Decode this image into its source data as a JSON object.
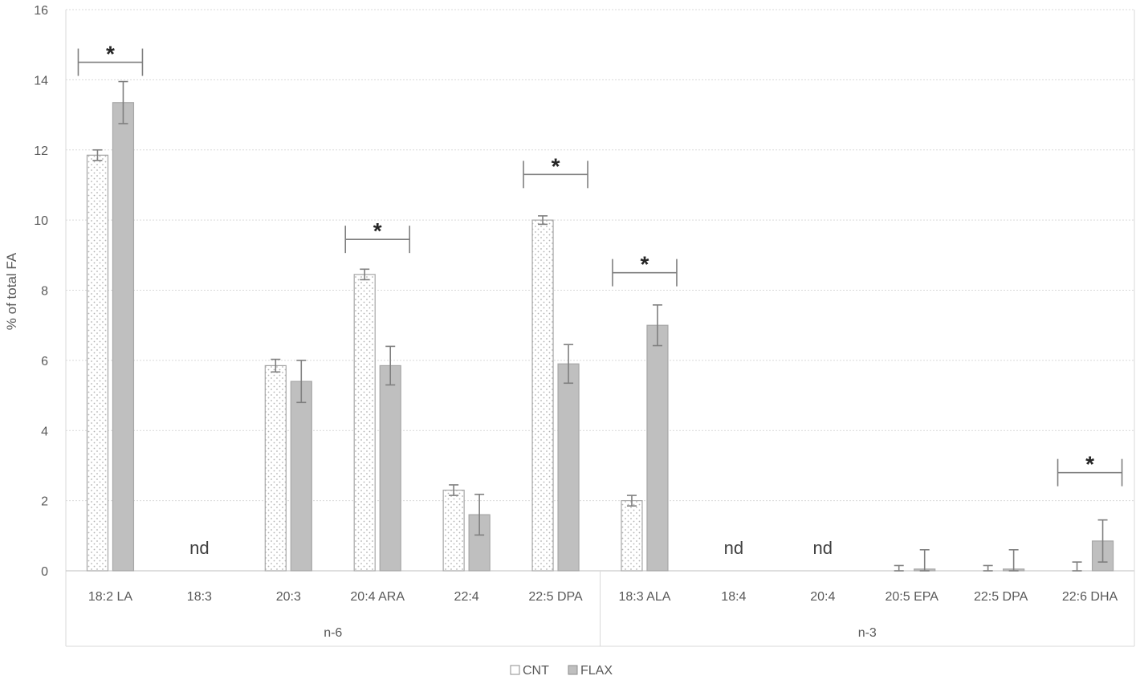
{
  "chart_data": {
    "type": "bar",
    "ylabel": "% of total FA",
    "ylim": [
      0,
      16
    ],
    "yticks": [
      0,
      2,
      4,
      6,
      8,
      10,
      12,
      14,
      16
    ],
    "grid": true,
    "legend_position": "bottom",
    "categories": [
      "18:2 LA",
      "18:3",
      "20:3",
      "20:4 ARA",
      "22:4",
      "22:5 DPA",
      "18:3 ALA",
      "18:4",
      "20:4",
      "20:5 EPA",
      "22:5 DPA",
      "22:6 DHA"
    ],
    "groups": [
      {
        "label": "n-6",
        "categories": [
          0,
          1,
          2,
          3,
          4,
          5
        ]
      },
      {
        "label": "n-3",
        "categories": [
          6,
          7,
          8,
          9,
          10,
          11
        ]
      }
    ],
    "series": [
      {
        "name": "CNT",
        "color": "#ffffff",
        "pattern": "dots",
        "values": [
          11.85,
          null,
          5.85,
          8.45,
          2.3,
          10.0,
          2.0,
          null,
          null,
          0.0,
          0.0,
          0.0
        ],
        "errors": [
          0.15,
          null,
          0.18,
          0.15,
          0.15,
          0.12,
          0.15,
          null,
          null,
          0.15,
          0.15,
          0.25
        ]
      },
      {
        "name": "FLAX",
        "color": "#bfbfbf",
        "pattern": "solid",
        "values": [
          13.35,
          null,
          5.4,
          5.85,
          1.6,
          5.9,
          7.0,
          null,
          null,
          0.05,
          0.05,
          0.85
        ],
        "errors": [
          0.6,
          null,
          0.6,
          0.55,
          0.58,
          0.55,
          0.58,
          null,
          null,
          0.55,
          0.55,
          0.6
        ]
      }
    ],
    "annotations": [
      {
        "text": "nd",
        "category": 1
      },
      {
        "text": "nd",
        "category": 7
      },
      {
        "text": "nd",
        "category": 8
      }
    ],
    "significance": [
      {
        "text": "*",
        "category": 0,
        "level": 14.5
      },
      {
        "text": "*",
        "category": 3,
        "level": 9.45
      },
      {
        "text": "*",
        "category": 5,
        "level": 11.3
      },
      {
        "text": "*",
        "category": 6,
        "level": 8.5
      },
      {
        "text": "*",
        "category": 11,
        "level": 2.8
      }
    ]
  }
}
